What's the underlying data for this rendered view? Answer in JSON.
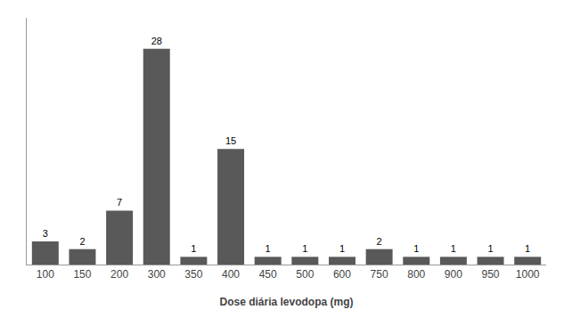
{
  "chart_data": {
    "type": "bar",
    "categories": [
      "100",
      "150",
      "200",
      "300",
      "350",
      "400",
      "450",
      "500",
      "600",
      "750",
      "800",
      "900",
      "950",
      "1000"
    ],
    "values": [
      3,
      2,
      7,
      28,
      1,
      15,
      1,
      1,
      1,
      2,
      1,
      1,
      1,
      1
    ],
    "color": "#595959",
    "xlabel": "Dose diária levodopa (mg)",
    "ylim": [
      0,
      32
    ],
    "yticks": [],
    "grid": false,
    "data_labels": true,
    "tick_labels": "x"
  }
}
